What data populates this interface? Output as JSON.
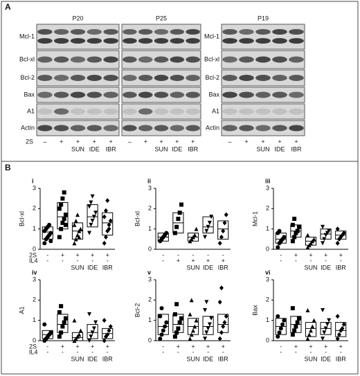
{
  "panel_a": {
    "label": "A",
    "rows": [
      "Mcl-1",
      "Bcl-xl",
      "Bcl-2",
      "Bax",
      "A1",
      "Actin"
    ],
    "treatment_label": "2S",
    "blots": [
      {
        "title": "P20",
        "signs": [
          "–",
          "+",
          "+",
          "+",
          "+"
        ],
        "drugs": [
          "SUN",
          "IDE",
          "IBR"
        ]
      },
      {
        "title": "P25",
        "signs": [
          "–",
          "+",
          "+",
          "+",
          "+"
        ],
        "drugs": [
          "SUN",
          "IDE",
          "IBR"
        ]
      },
      {
        "title": "P19",
        "signs": [
          "–",
          "+",
          "+",
          "+",
          "+"
        ],
        "drugs": [
          "SUN",
          "IDE",
          "IBR"
        ]
      }
    ]
  },
  "panel_b": {
    "label": "B"
  },
  "markers": [
    "circle",
    "square",
    "triangle",
    "triangle-down",
    "diamond"
  ],
  "chart_data": [
    {
      "type": "box",
      "label": "i",
      "ylabel": "Bcl-xl",
      "ylim": [
        0,
        3
      ],
      "yticks": [
        0,
        1,
        2,
        3
      ],
      "categories": [
        null,
        null,
        "SUN",
        "IDE",
        "IBR"
      ],
      "row_labels": [
        "2S",
        "IL4"
      ],
      "signs": [
        [
          "-",
          "+",
          "+",
          "+",
          "+"
        ],
        [
          "-",
          "-",
          "-",
          "-",
          "-"
        ]
      ],
      "groups": [
        {
          "low": 0.5,
          "median": 0.85,
          "high": 1.1,
          "points": [
            0.3,
            0.5,
            0.6,
            0.7,
            0.8,
            0.9,
            1.0,
            1.1,
            1.2,
            0.4
          ]
        },
        {
          "low": 1.0,
          "median": 1.6,
          "high": 2.3,
          "points": [
            0.6,
            1.0,
            1.3,
            1.5,
            1.7,
            2.0,
            2.2,
            2.5,
            2.8,
            1.2
          ]
        },
        {
          "low": 0.5,
          "median": 0.9,
          "high": 1.3,
          "points": [
            0.3,
            0.5,
            0.7,
            0.9,
            1.0,
            1.2,
            1.4,
            1.7,
            0.6
          ]
        },
        {
          "low": 1.1,
          "median": 1.6,
          "high": 2.2,
          "points": [
            0.8,
            1.2,
            1.4,
            1.6,
            1.8,
            2.1,
            2.3,
            2.6
          ]
        },
        {
          "low": 0.7,
          "median": 1.3,
          "high": 1.8,
          "points": [
            0.3,
            0.6,
            0.9,
            1.2,
            1.4,
            1.6,
            1.9,
            2.4,
            1.0
          ]
        }
      ]
    },
    {
      "type": "box",
      "label": "ii",
      "ylabel": "Bcl-xl",
      "ylim": [
        0,
        3
      ],
      "yticks": [
        0,
        1,
        2,
        3
      ],
      "categories": [
        null,
        null,
        "SUN",
        "IDE",
        "IBR"
      ],
      "row_labels": [],
      "signs": [
        [
          "-",
          "-",
          "-",
          "-",
          "-"
        ],
        [
          "-",
          "+",
          "+",
          "+",
          "+"
        ]
      ],
      "groups": [
        {
          "low": 0.4,
          "median": 0.6,
          "high": 0.8,
          "points": [
            0.4,
            0.5,
            0.6,
            0.7,
            0.8
          ]
        },
        {
          "low": 0.8,
          "median": 1.3,
          "high": 1.8,
          "points": [
            0.8,
            1.1,
            1.5,
            1.8,
            2.2
          ]
        },
        {
          "low": 0.4,
          "median": 0.6,
          "high": 0.8,
          "points": [
            0.4,
            0.5,
            0.6,
            0.7,
            1.0
          ]
        },
        {
          "low": 0.8,
          "median": 1.1,
          "high": 1.6,
          "points": [
            0.6,
            0.9,
            1.1,
            1.3,
            1.6
          ]
        },
        {
          "low": 0.5,
          "median": 1.0,
          "high": 1.4,
          "points": [
            0.3,
            0.6,
            0.9,
            1.3,
            1.7
          ]
        }
      ]
    },
    {
      "type": "box",
      "label": "iii",
      "ylabel": "Mcl-1",
      "ylim": [
        0,
        3
      ],
      "yticks": [
        0,
        1,
        2,
        3
      ],
      "categories": [
        null,
        null,
        "SUN",
        "IDE",
        "IBR"
      ],
      "row_labels": [],
      "signs": [
        [
          "-",
          "+",
          "+",
          "+",
          "+"
        ],
        [
          "-",
          "-",
          "-",
          "-",
          "-"
        ]
      ],
      "groups": [
        {
          "low": 0.3,
          "median": 0.5,
          "high": 0.8,
          "points": [
            0.1,
            0.3,
            0.4,
            0.5,
            0.6,
            0.8,
            0.9
          ]
        },
        {
          "low": 0.6,
          "median": 0.9,
          "high": 1.2,
          "points": [
            0.4,
            0.6,
            0.8,
            0.9,
            1.1,
            1.2,
            1.5
          ]
        },
        {
          "low": 0.2,
          "median": 0.4,
          "high": 0.6,
          "points": [
            0.1,
            0.2,
            0.3,
            0.4,
            0.5,
            0.7
          ]
        },
        {
          "low": 0.5,
          "median": 0.75,
          "high": 1.0,
          "points": [
            0.3,
            0.5,
            0.7,
            0.8,
            0.9,
            1.1
          ]
        },
        {
          "low": 0.5,
          "median": 0.7,
          "high": 0.9,
          "points": [
            0.3,
            0.5,
            0.6,
            0.7,
            0.8,
            1.0
          ]
        }
      ]
    },
    {
      "type": "box",
      "label": "iv",
      "ylabel": "A1",
      "ylim": [
        0,
        3
      ],
      "yticks": [
        0,
        1,
        2,
        3
      ],
      "categories": [
        null,
        null,
        "SUN",
        "IDE",
        "IBR"
      ],
      "row_labels": [
        "2S",
        "IL4"
      ],
      "signs": [
        [
          "-",
          "+",
          "+",
          "+",
          "+"
        ],
        [
          "-",
          "-",
          "-",
          "-",
          "-"
        ]
      ],
      "groups": [
        {
          "low": 0.1,
          "median": 0.3,
          "high": 0.5,
          "points": [
            0.0,
            0.1,
            0.2,
            0.3,
            0.4,
            0.8
          ]
        },
        {
          "low": 0.4,
          "median": 0.8,
          "high": 1.3,
          "points": [
            0.2,
            0.4,
            0.7,
            0.9,
            1.1,
            1.4,
            1.7
          ]
        },
        {
          "low": 0.0,
          "median": 0.15,
          "high": 0.4,
          "points": [
            0.0,
            0.1,
            0.2,
            0.3,
            0.5,
            1.0
          ]
        },
        {
          "low": 0.1,
          "median": 0.4,
          "high": 0.8,
          "points": [
            0.0,
            0.2,
            0.4,
            0.6,
            0.9,
            1.3
          ]
        },
        {
          "low": 0.1,
          "median": 0.35,
          "high": 0.6,
          "points": [
            0.0,
            0.2,
            0.3,
            0.5,
            0.7,
            1.0
          ]
        }
      ]
    },
    {
      "type": "box",
      "label": "v",
      "ylabel": "Bcl-2",
      "ylim": [
        0,
        3
      ],
      "yticks": [
        0,
        1,
        2,
        3
      ],
      "categories": [
        null,
        null,
        "SUN",
        "IDE",
        "IBR"
      ],
      "row_labels": [],
      "signs": [
        [
          "-",
          "+",
          "+",
          "+",
          "+"
        ],
        [
          "-",
          "-",
          "-",
          "-",
          "-"
        ]
      ],
      "groups": [
        {
          "low": 0.3,
          "median": 0.7,
          "high": 1.3,
          "points": [
            0.1,
            0.3,
            0.5,
            0.7,
            0.9,
            1.2,
            1.6
          ]
        },
        {
          "low": 0.4,
          "median": 0.8,
          "high": 1.3,
          "points": [
            0.2,
            0.4,
            0.6,
            0.9,
            1.1,
            1.3,
            1.8
          ]
        },
        {
          "low": 0.3,
          "median": 0.7,
          "high": 1.1,
          "points": [
            0.1,
            0.3,
            0.5,
            0.7,
            1.0,
            1.3,
            2.0
          ]
        },
        {
          "low": 0.3,
          "median": 0.7,
          "high": 1.2,
          "points": [
            0.1,
            0.4,
            0.6,
            0.8,
            1.1,
            1.5,
            1.9
          ]
        },
        {
          "low": 0.4,
          "median": 0.8,
          "high": 1.3,
          "points": [
            0.1,
            0.4,
            0.7,
            0.9,
            1.2,
            1.9,
            2.6
          ]
        }
      ]
    },
    {
      "type": "box",
      "label": "vi",
      "ylabel": "Bax",
      "ylim": [
        0,
        3
      ],
      "yticks": [
        0,
        1,
        2,
        3
      ],
      "categories": [
        null,
        null,
        "SUN",
        "IDE",
        "IBR"
      ],
      "row_labels": [],
      "signs": [
        [
          "-",
          "+",
          "+",
          "+",
          "+"
        ],
        [
          "-",
          "-",
          "-",
          "-",
          "-"
        ]
      ],
      "groups": [
        {
          "low": 0.3,
          "median": 0.7,
          "high": 1.1,
          "points": [
            0.2,
            0.4,
            0.6,
            0.8,
            1.0,
            1.2
          ]
        },
        {
          "low": 0.4,
          "median": 0.8,
          "high": 1.2,
          "points": [
            0.3,
            0.5,
            0.7,
            0.9,
            1.1,
            1.6
          ]
        },
        {
          "low": 0.2,
          "median": 0.6,
          "high": 0.9,
          "points": [
            0.1,
            0.3,
            0.5,
            0.7,
            1.0,
            1.5
          ]
        },
        {
          "low": 0.3,
          "median": 0.6,
          "high": 0.9,
          "points": [
            0.1,
            0.4,
            0.6,
            0.8,
            1.0,
            1.5
          ]
        },
        {
          "low": 0.2,
          "median": 0.5,
          "high": 0.9,
          "points": [
            0.1,
            0.3,
            0.5,
            0.6,
            0.8,
            1.2
          ]
        }
      ]
    }
  ]
}
